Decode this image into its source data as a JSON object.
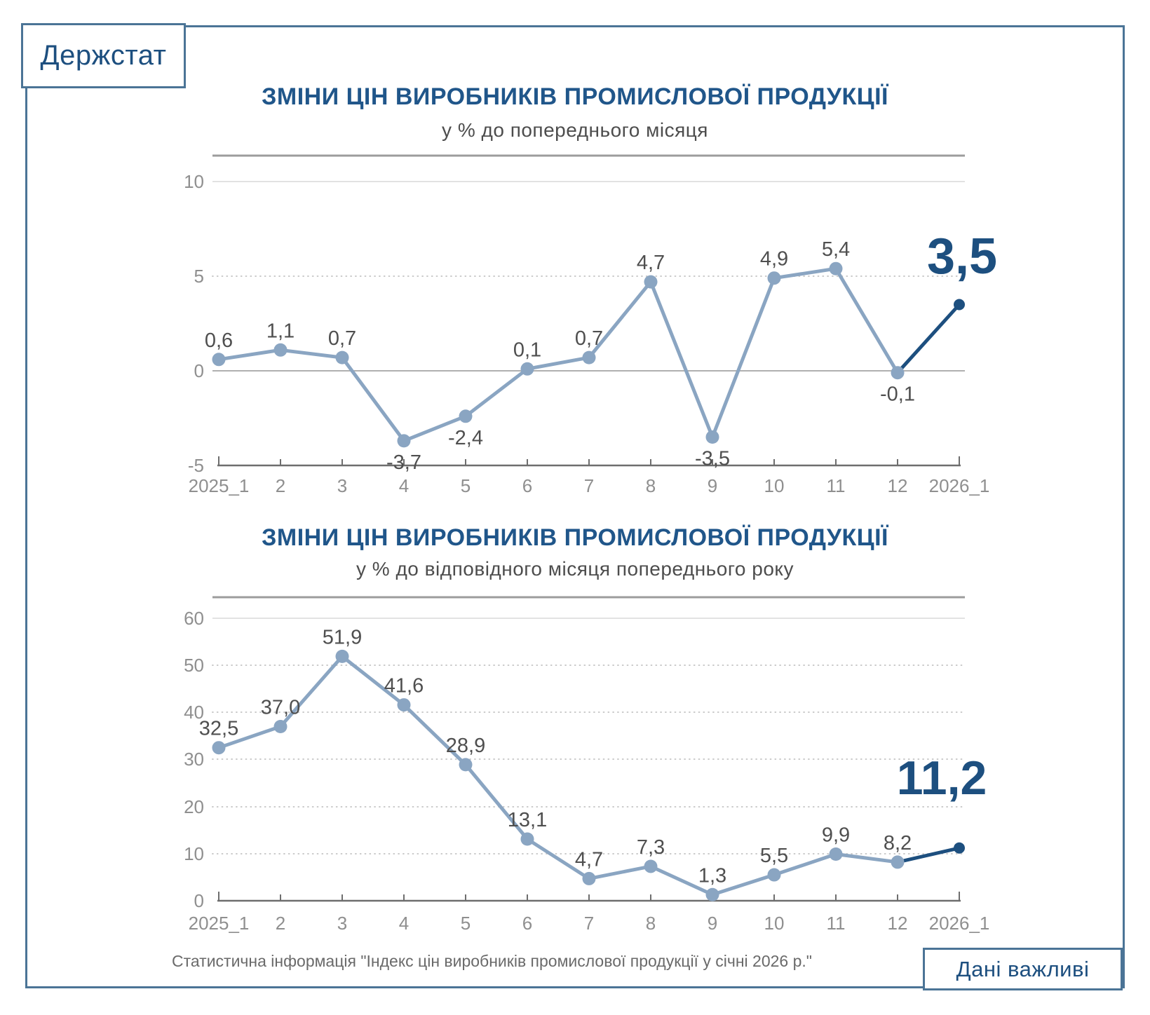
{
  "logo": {
    "text": "Держстат"
  },
  "badge": {
    "text": "Дані важливі"
  },
  "footer": {
    "text": "Статистична інформація \"Індекс цін виробників промислової продукції у січні 2026 р.\""
  },
  "colors": {
    "accent_navy": "#1d4f7f",
    "title_blue": "#20568a",
    "line_blue": "#8aa5c2",
    "border_blue": "#4b7496",
    "value_label_gray": "#4f4f4f",
    "tick_gray": "#8f8f8f",
    "footer_gray": "#6a6a6a"
  },
  "chart_data": [
    {
      "type": "line",
      "title": "ЗМІНИ ЦІН ВИРОБНИКІВ ПРОМИСЛОВОЇ ПРОДУКЦІЇ",
      "subtitle": "у % до попереднього місяця",
      "categories": [
        "2025_1",
        "2",
        "3",
        "4",
        "5",
        "6",
        "7",
        "8",
        "9",
        "10",
        "11",
        "12",
        "2026_1"
      ],
      "values": [
        0.6,
        1.1,
        0.7,
        -3.7,
        -2.4,
        0.1,
        0.7,
        4.7,
        -3.5,
        4.9,
        5.4,
        -0.1,
        3.5
      ],
      "labels": [
        "0,6",
        "1,1",
        "0,7",
        "-3,7",
        "-2,4",
        "0,1",
        "0,7",
        "4,7",
        "-3,5",
        "4,9",
        "5,4",
        "-0,1",
        "3,5"
      ],
      "label_below_indices": [
        3,
        4,
        8,
        11
      ],
      "highlight_last": true,
      "highlight_value_label": "3,5",
      "ylim": [
        -5,
        10
      ],
      "yticks": [
        10,
        5,
        0,
        -5
      ],
      "ytick_labels": [
        "10",
        "5",
        "0",
        "-5"
      ],
      "grid": true,
      "legend": "none"
    },
    {
      "type": "line",
      "title": "ЗМІНИ ЦІН ВИРОБНИКІВ ПРОМИСЛОВОЇ ПРОДУКЦІЇ",
      "subtitle": "у % до відповідного місяця попереднього року",
      "categories": [
        "2025_1",
        "2",
        "3",
        "4",
        "5",
        "6",
        "7",
        "8",
        "9",
        "10",
        "11",
        "12",
        "2026_1"
      ],
      "values": [
        32.5,
        37.0,
        51.9,
        41.6,
        28.9,
        13.1,
        4.7,
        7.3,
        1.3,
        5.5,
        9.9,
        8.2,
        11.2
      ],
      "labels": [
        "32,5",
        "37,0",
        "51,9",
        "41,6",
        "28,9",
        "13,1",
        "4,7",
        "7,3",
        "1,3",
        "5,5",
        "9,9",
        "8,2",
        "11,2"
      ],
      "label_below_indices": [],
      "highlight_last": true,
      "highlight_value_label": "11,2",
      "ylim": [
        0,
        60
      ],
      "yticks": [
        60,
        50,
        40,
        30,
        20,
        10,
        0
      ],
      "ytick_labels": [
        "60",
        "50",
        "40",
        "30",
        "20",
        "10",
        "0"
      ],
      "grid": true,
      "legend": "none"
    }
  ]
}
